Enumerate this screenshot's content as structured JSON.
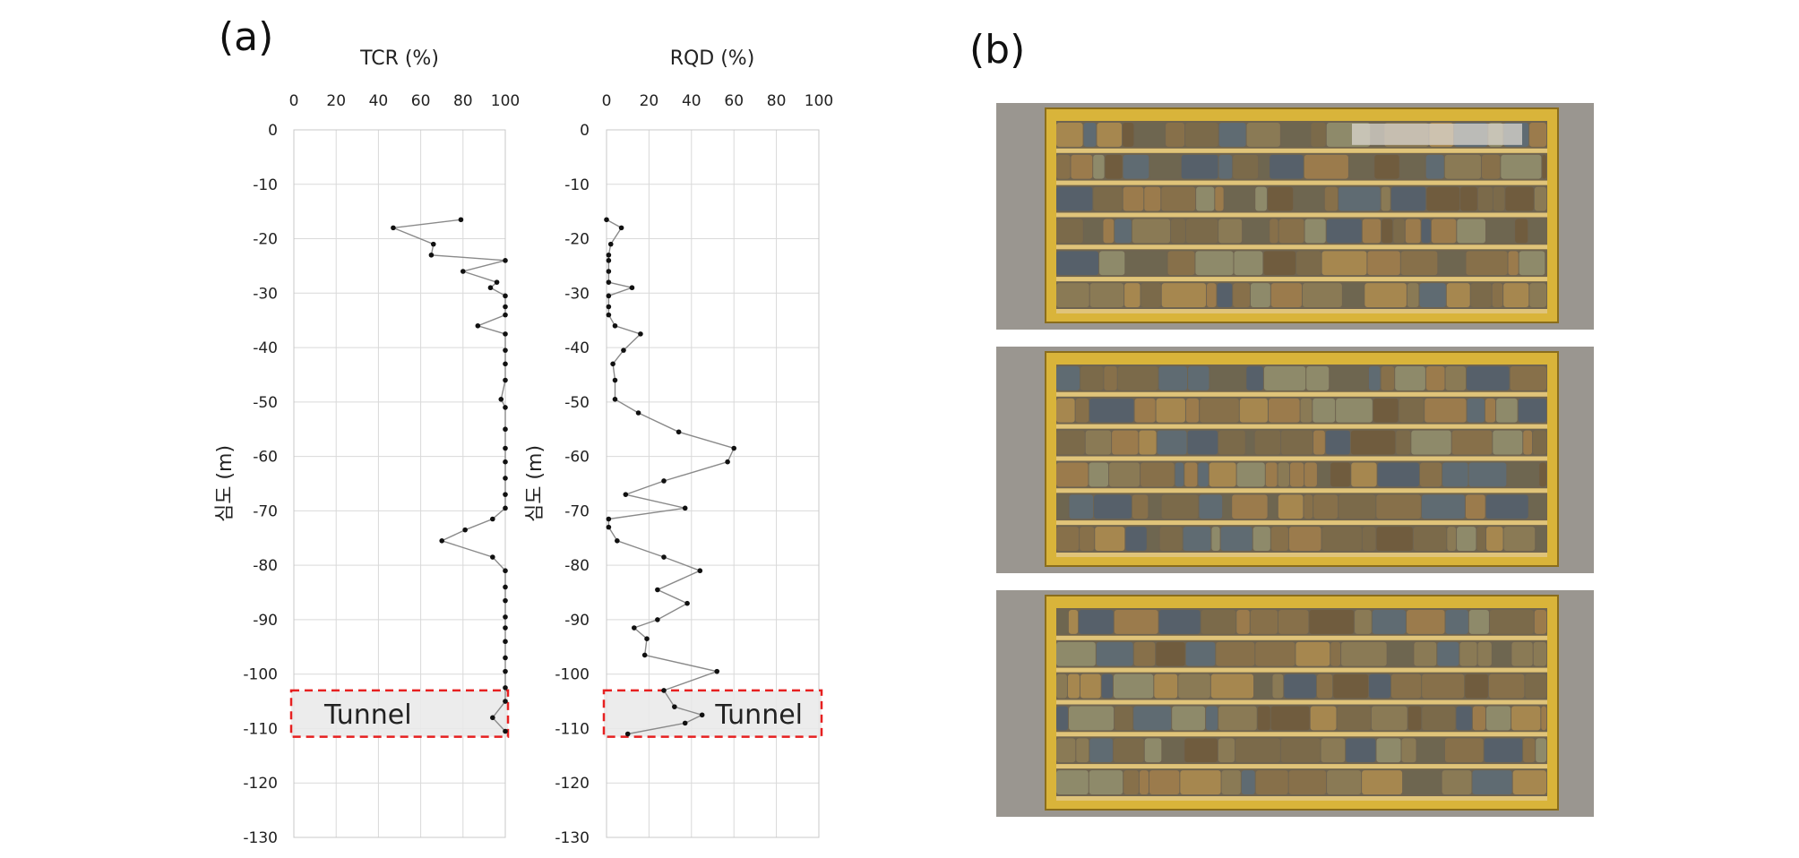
{
  "figure": {
    "panel_a_label": "(a)",
    "panel_b_label": "(b)"
  },
  "colors": {
    "series": "#8a8a8a",
    "points": "#111111",
    "grid": "#d9d9d9",
    "tunnel_outline": "#e62020",
    "tunnel_fill": "#e9e9e9",
    "box_wood": "#d9b43a"
  },
  "chart_data": [
    {
      "type": "line",
      "title": "TCR (%)",
      "ylabel": "심도 (m)",
      "xlabel": "",
      "xlim": [
        0,
        100
      ],
      "ylim": [
        -130,
        0
      ],
      "x_ticks": [
        "0",
        "20",
        "40",
        "60",
        "80",
        "100"
      ],
      "y_ticks": [
        "0",
        "-10",
        "-20",
        "-30",
        "-40",
        "-50",
        "-60",
        "-70",
        "-80",
        "-90",
        "-100",
        "-110",
        "-120",
        "-130"
      ],
      "grid": true,
      "annotation": {
        "text": "Tunnel",
        "ymin": -111.5,
        "ymax": -103,
        "position": "left"
      },
      "points": [
        [
          79,
          -16.5
        ],
        [
          47,
          -18
        ],
        [
          66,
          -21
        ],
        [
          65,
          -23
        ],
        [
          100,
          -24
        ],
        [
          80,
          -26
        ],
        [
          96,
          -28
        ],
        [
          93,
          -29
        ],
        [
          100,
          -30.5
        ],
        [
          100,
          -32.5
        ],
        [
          100,
          -34
        ],
        [
          87,
          -36
        ],
        [
          100,
          -37.5
        ],
        [
          100,
          -40.5
        ],
        [
          100,
          -43
        ],
        [
          100,
          -46
        ],
        [
          98,
          -49.5
        ],
        [
          100,
          -51
        ],
        [
          100,
          -55
        ],
        [
          100,
          -58.5
        ],
        [
          100,
          -61
        ],
        [
          100,
          -64
        ],
        [
          100,
          -67
        ],
        [
          100,
          -69.5
        ],
        [
          94,
          -71.5
        ],
        [
          81,
          -73.5
        ],
        [
          70,
          -75.5
        ],
        [
          94,
          -78.5
        ],
        [
          100,
          -81
        ],
        [
          100,
          -84
        ],
        [
          100,
          -86.5
        ],
        [
          100,
          -89.5
        ],
        [
          100,
          -91.5
        ],
        [
          100,
          -94
        ],
        [
          100,
          -97
        ],
        [
          100,
          -99.5
        ],
        [
          100,
          -102.5
        ],
        [
          100,
          -105
        ],
        [
          94,
          -108
        ],
        [
          100,
          -110.5
        ]
      ]
    },
    {
      "type": "line",
      "title": "RQD (%)",
      "ylabel": "심도 (m)",
      "xlabel": "",
      "xlim": [
        0,
        100
      ],
      "ylim": [
        -130,
        0
      ],
      "x_ticks": [
        "0",
        "20",
        "40",
        "60",
        "80",
        "100"
      ],
      "y_ticks": [
        "0",
        "-10",
        "-20",
        "-30",
        "-40",
        "-50",
        "-60",
        "-70",
        "-80",
        "-90",
        "-100",
        "-110",
        "-120",
        "-130"
      ],
      "grid": true,
      "annotation": {
        "text": "Tunnel",
        "ymin": -111.5,
        "ymax": -103,
        "position": "right"
      },
      "points": [
        [
          0,
          -16.5
        ],
        [
          7,
          -18
        ],
        [
          2,
          -21
        ],
        [
          1,
          -23
        ],
        [
          1,
          -24
        ],
        [
          1,
          -26
        ],
        [
          1,
          -28
        ],
        [
          12,
          -29
        ],
        [
          1,
          -30.5
        ],
        [
          1,
          -32.5
        ],
        [
          1,
          -34
        ],
        [
          4,
          -36
        ],
        [
          16,
          -37.5
        ],
        [
          8,
          -40.5
        ],
        [
          3,
          -43
        ],
        [
          4,
          -46
        ],
        [
          4,
          -49.5
        ],
        [
          15,
          -52
        ],
        [
          34,
          -55.5
        ],
        [
          60,
          -58.5
        ],
        [
          57,
          -61
        ],
        [
          27,
          -64.5
        ],
        [
          9,
          -67
        ],
        [
          37,
          -69.5
        ],
        [
          1,
          -71.5
        ],
        [
          1,
          -73
        ],
        [
          5,
          -75.5
        ],
        [
          27,
          -78.5
        ],
        [
          44,
          -81
        ],
        [
          24,
          -84.5
        ],
        [
          38,
          -87
        ],
        [
          24,
          -90
        ],
        [
          13,
          -91.5
        ],
        [
          19,
          -93.5
        ],
        [
          18,
          -96.5
        ],
        [
          52,
          -99.5
        ],
        [
          27,
          -103
        ],
        [
          32,
          -106
        ],
        [
          45,
          -107.5
        ],
        [
          37,
          -109
        ],
        [
          10,
          -111
        ]
      ]
    }
  ],
  "core_boxes": {
    "count": 3
  }
}
